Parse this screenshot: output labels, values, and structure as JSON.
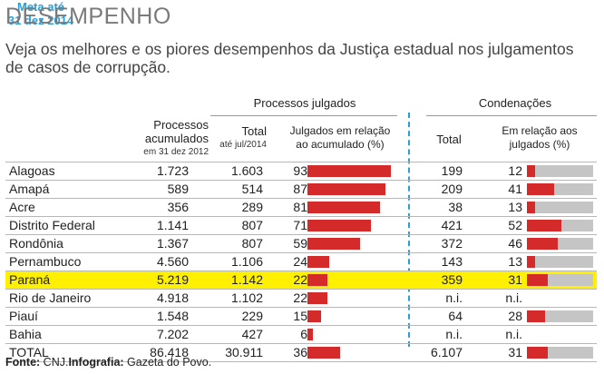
{
  "header": {
    "title": "DESEMPENHO",
    "subtitle": "Veja os melhores e os piores desempenhos da Justiça estadual nos julgamentos de casos de corrupção."
  },
  "columns": {
    "processos_julgados": "Processos julgados",
    "meta_line1": "Meta até",
    "meta_line2": "31 dez 2014",
    "condenacoes": "Condenações",
    "acumulados_line1": "Processos",
    "acumulados_line2": "acumulados",
    "acumulados_sub": "em 31 dez 2012",
    "total": "Total",
    "total_sub": "até jul/2014",
    "julgados_rel_line1": "Julgados em relação",
    "julgados_rel_line2": "ao acumulado (%)",
    "cond_total": "Total",
    "cond_rel_line1": "Em relação aos",
    "cond_rel_line2": "julgados (%)"
  },
  "chart_data": {
    "type": "table",
    "title": "DESEMPENHO",
    "highlight": "Paraná",
    "rows": [
      {
        "state": "Alagoas",
        "acumulados": "1.723",
        "total": "1.603",
        "pct": 93,
        "cond": "199",
        "cond_pct": 12
      },
      {
        "state": "Amapá",
        "acumulados": "589",
        "total": "514",
        "pct": 87,
        "cond": "209",
        "cond_pct": 41
      },
      {
        "state": "Acre",
        "acumulados": "356",
        "total": "289",
        "pct": 81,
        "cond": "38",
        "cond_pct": 13
      },
      {
        "state": "Distrito Federal",
        "acumulados": "1.141",
        "total": "807",
        "pct": 71,
        "cond": "421",
        "cond_pct": 52
      },
      {
        "state": "Rondônia",
        "acumulados": "1.367",
        "total": "807",
        "pct": 59,
        "cond": "372",
        "cond_pct": 46
      },
      {
        "state": "Pernambuco",
        "acumulados": "4.560",
        "total": "1.106",
        "pct": 24,
        "cond": "143",
        "cond_pct": 13
      },
      {
        "state": "Paraná",
        "acumulados": "5.219",
        "total": "1.142",
        "pct": 22,
        "cond": "359",
        "cond_pct": 31
      },
      {
        "state": "Rio de Janeiro",
        "acumulados": "4.918",
        "total": "1.102",
        "pct": 22,
        "cond": "n.i.",
        "cond_pct": "n.i."
      },
      {
        "state": "Piauí",
        "acumulados": "1.548",
        "total": "229",
        "pct": 15,
        "cond": "64",
        "cond_pct": 28
      },
      {
        "state": "Bahia",
        "acumulados": "7.202",
        "total": "427",
        "pct": 6,
        "cond": "n.i.",
        "cond_pct": "n.i."
      },
      {
        "state": "TOTAL",
        "acumulados": "86.418",
        "total": "30.911",
        "pct": 36,
        "cond": "6.107",
        "cond_pct": 31
      }
    ],
    "bar_color": "#d42a2a",
    "bar_bg_color": "#c5c5c5",
    "highlight_color": "#ffef00"
  },
  "footer": {
    "source_label": "Fonte:",
    "source_value": "CNJ.",
    "infografia_label": "Infografia:",
    "infografia_value": "Gazeta do Povo."
  }
}
